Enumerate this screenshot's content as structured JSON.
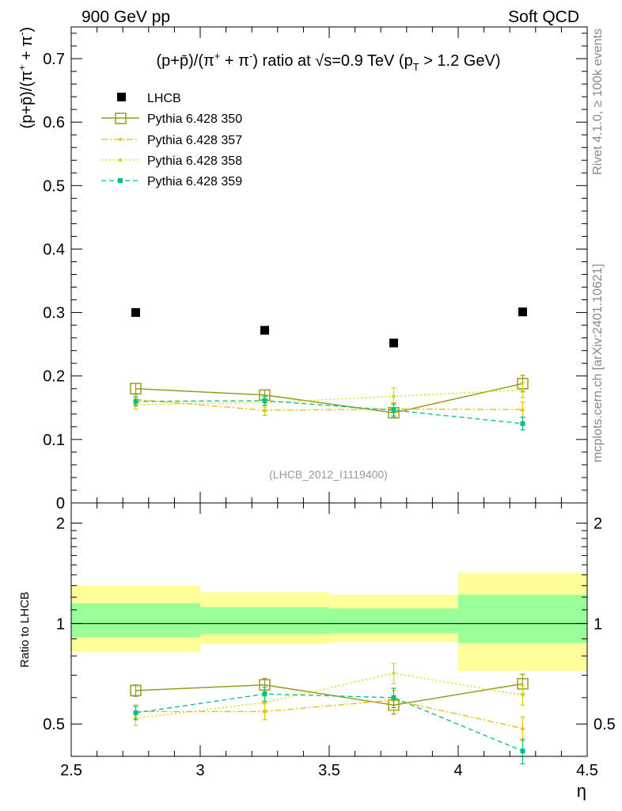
{
  "header": {
    "left": "900 GeV pp",
    "right": "Soft QCD"
  },
  "side_labels": {
    "rivet": "Rivet 4.1.0, ≥ 100k events",
    "mcplots": "mcplots.cern.ch [arXiv:2401.10621]"
  },
  "colors": {
    "lhcb": "#000000",
    "p350": "#9a9a20",
    "p357": "#e6c000",
    "p358": "#d6d600",
    "p359": "#00c080",
    "band_outer": "#ffff99",
    "band_inner": "#99ff99"
  },
  "chart_data": [
    {
      "type": "scatter",
      "title": "(p+p̄)/(π⁺ + π⁻) ratio at √s=0.9 TeV (p_T > 1.2 GeV)",
      "title_parts": {
        "a": "(p+p̄)/(π",
        "b": "+",
        "c": " + π",
        "d": "-",
        "e": ") ratio at √s=0.9 TeV (p",
        "f": "T",
        "g": " > 1.2 GeV)"
      },
      "ylabel": "(p+p̄)/(π⁺ + π⁻)",
      "ylabel_parts": {
        "a": "(p+p̄)/(π",
        "b": "+",
        "c": " + π",
        "d": "-",
        "e": ")"
      },
      "watermark": "(LHCB_2012_I1119400)",
      "xlim": [
        2.5,
        4.5
      ],
      "ylim": [
        0,
        0.75
      ],
      "yticks": [
        0.1,
        0.2,
        0.3,
        0.4,
        0.5,
        0.6,
        0.7
      ],
      "ytick_labels": [
        "0.1",
        "0.2",
        "0.3",
        "0.4",
        "0.5",
        "0.6",
        "0.7"
      ],
      "bottom_tick_label": "0",
      "legend_position": "top-left",
      "x": [
        2.75,
        3.25,
        3.75,
        4.25
      ],
      "series": [
        {
          "name": "LHCB",
          "key": "lhcb",
          "marker": "square-filled",
          "values": [
            0.3,
            0.272,
            0.252,
            0.301
          ],
          "errors": [
            0.0,
            0.0,
            0.0,
            0.0
          ]
        },
        {
          "name": "Pythia 6.428 350",
          "key": "p350",
          "marker": "square-open",
          "line": "solid",
          "values": [
            0.18,
            0.17,
            0.142,
            0.188
          ],
          "errors": [
            0.008,
            0.008,
            0.008,
            0.013
          ]
        },
        {
          "name": "Pythia 6.428 357",
          "key": "p357",
          "marker": "triangle",
          "line": "dashdot",
          "values": [
            0.163,
            0.146,
            0.148,
            0.147
          ],
          "errors": [
            0.007,
            0.008,
            0.01,
            0.012
          ]
        },
        {
          "name": "Pythia 6.428 358",
          "key": "p358",
          "marker": "dot",
          "line": "dotted",
          "values": [
            0.155,
            0.158,
            0.168,
            0.178
          ],
          "errors": [
            0.007,
            0.007,
            0.013,
            0.012
          ]
        },
        {
          "name": "Pythia 6.428 359",
          "key": "p359",
          "marker": "square-small",
          "line": "dashed",
          "values": [
            0.16,
            0.161,
            0.146,
            0.125
          ],
          "errors": [
            0.007,
            0.007,
            0.01,
            0.01
          ]
        }
      ]
    },
    {
      "type": "scatter",
      "ylabel": "Ratio to LHCB",
      "xlabel": "η",
      "xlim": [
        2.5,
        4.5
      ],
      "ylim": [
        0.4,
        2.3
      ],
      "yscale": "log",
      "xticks": [
        2.5,
        3.0,
        3.5,
        4.0,
        4.5
      ],
      "xtick_labels": [
        "2.5",
        "3",
        "3.5",
        "4",
        "4.5"
      ],
      "yticks": [
        0.5,
        1.0,
        2.0
      ],
      "ytick_labels": [
        "0.5",
        "1",
        "2"
      ],
      "reference_line": 1.0,
      "bands": [
        {
          "xmin": 2.5,
          "xmax": 3.0,
          "inner": [
            0.91,
            1.15
          ],
          "outer": [
            0.82,
            1.3
          ]
        },
        {
          "xmin": 3.0,
          "xmax": 3.5,
          "inner": [
            0.93,
            1.12
          ],
          "outer": [
            0.87,
            1.24
          ]
        },
        {
          "xmin": 3.5,
          "xmax": 4.0,
          "inner": [
            0.935,
            1.11
          ],
          "outer": [
            0.88,
            1.22
          ]
        },
        {
          "xmin": 4.0,
          "xmax": 4.5,
          "inner": [
            0.875,
            1.22
          ],
          "outer": [
            0.72,
            1.42
          ]
        }
      ],
      "x": [
        2.75,
        3.25,
        3.75,
        4.25
      ],
      "series": [
        {
          "name": "Pythia 6.428 350",
          "key": "p350",
          "marker": "square-open",
          "line": "solid",
          "values": [
            0.63,
            0.655,
            0.57,
            0.66
          ],
          "errors": [
            0.025,
            0.03,
            0.035,
            0.045
          ]
        },
        {
          "name": "Pythia 6.428 357",
          "key": "p357",
          "marker": "triangle",
          "line": "dashdot",
          "values": [
            0.545,
            0.545,
            0.59,
            0.485
          ],
          "errors": [
            0.025,
            0.03,
            0.04,
            0.04
          ]
        },
        {
          "name": "Pythia 6.428 358",
          "key": "p358",
          "marker": "dot",
          "line": "dotted",
          "values": [
            0.52,
            0.58,
            0.71,
            0.61
          ],
          "errors": [
            0.025,
            0.03,
            0.05,
            0.04
          ]
        },
        {
          "name": "Pythia 6.428 359",
          "key": "p359",
          "marker": "square-small",
          "line": "dashed",
          "values": [
            0.54,
            0.615,
            0.6,
            0.415
          ],
          "errors": [
            0.025,
            0.03,
            0.04,
            0.035
          ]
        }
      ]
    }
  ]
}
